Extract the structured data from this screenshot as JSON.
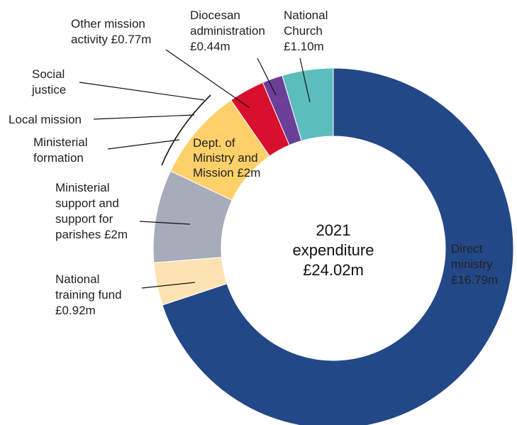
{
  "chart_data": {
    "type": "pie",
    "donut": true,
    "total_label": [
      "2021",
      "expenditure",
      "£24.02m"
    ],
    "total": 24.02,
    "slices": [
      {
        "name": "Direct ministry",
        "label_lines": [
          "Direct",
          "ministry",
          "£16.79m"
        ],
        "value": 16.79,
        "color": "#234888"
      },
      {
        "name": "National training fund",
        "label_lines": [
          "National",
          "training fund",
          "£0.92m"
        ],
        "value": 0.92,
        "color": "#fde3b1"
      },
      {
        "name": "Ministerial support and support for parishes",
        "label_lines": [
          "Ministerial",
          "support and",
          "support for",
          "parishes £2m"
        ],
        "value": 2.0,
        "color": "#a7acba"
      },
      {
        "name": "Dept. of Ministry and Mission",
        "label_lines": [
          "Dept. of",
          "Ministry and",
          "Mission £2m"
        ],
        "value": 2.0,
        "color": "#fdd06a"
      },
      {
        "name": "Other mission activity",
        "label_lines": [
          "Other mission",
          "activity £0.77m"
        ],
        "value": 0.77,
        "color": "#d8102f"
      },
      {
        "name": "Diocesan administration",
        "label_lines": [
          "Diocesan",
          "administration",
          "£0.44m"
        ],
        "value": 0.44,
        "color": "#6b3f98"
      },
      {
        "name": "National Church",
        "label_lines": [
          "National",
          "Church",
          "£1.10m"
        ],
        "value": 1.1,
        "color": "#5dbdbd"
      }
    ],
    "sub_labels": [
      {
        "name": "Social justice",
        "label_lines": [
          "Social",
          "justice"
        ]
      },
      {
        "name": "Local mission",
        "label_lines": [
          "Local mission"
        ]
      },
      {
        "name": "Ministerial formation",
        "label_lines": [
          "Ministerial",
          "formation"
        ]
      }
    ]
  }
}
